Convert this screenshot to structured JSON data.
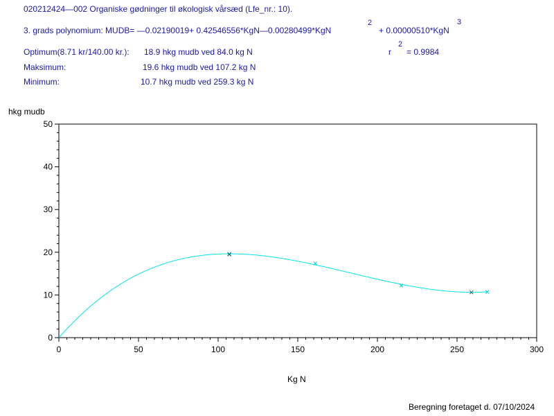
{
  "header": {
    "title": "020212424—002  Organiske gødninger til økologisk vårsæd  (Lfe_nr.: 10).",
    "polynomial": "3. grads  polynomium:  MUDB= —0.02190019+ 0.42546556*KgN—0.00280499*KgN",
    "poly_term3": "+ 0.00000510*KgN",
    "sup_2": "2",
    "sup_3": "3",
    "optimum_label": "Optimum(8.71 kr/140.00 kr.):",
    "optimum_value": "18.9  hkg  mudb  ved  84.0  kg  N",
    "maximum_label": "Maksimum:",
    "maximum_value": "19.6  hkg  mudb  ved  107.2  kg  N",
    "minimum_label": "Minimum:",
    "minimum_value": "10.7  hkg  mudb  ved  259.3  kg  N",
    "r_label": "r",
    "r_sup": "2",
    "r_value": "= 0.9984"
  },
  "footer": {
    "text": "Beregning  foretaget  d.  07/10/2024"
  },
  "colors": {
    "header_text": "#1a1aa6",
    "curve": "#00e5ee",
    "observed_marker": "#006060",
    "predicted_marker": "#00cdd2"
  },
  "chart_data": {
    "type": "line",
    "title": "",
    "xlabel": "Kg  N",
    "ylabel": "hkg  mudb",
    "xlim": [
      0,
      300
    ],
    "ylim": [
      0,
      50
    ],
    "x_ticks": [
      0,
      50,
      100,
      150,
      200,
      250,
      300
    ],
    "y_ticks": [
      0,
      10,
      20,
      30,
      40,
      50
    ],
    "x_minor_step": 5,
    "y_minor_step": 2,
    "grid": false,
    "curve": {
      "coefficients": [
        -0.02190019,
        0.42546556,
        -0.00280499,
        5.1e-06
      ],
      "x_range": [
        0,
        269
      ]
    },
    "observed_points": [
      {
        "x": 107,
        "y": 19.5
      },
      {
        "x": 259,
        "y": 10.6
      }
    ],
    "predicted_points": [
      {
        "x": 107,
        "y": 19.6
      },
      {
        "x": 161,
        "y": 17.4
      },
      {
        "x": 215,
        "y": 12.2
      },
      {
        "x": 269,
        "y": 10.7
      }
    ]
  }
}
